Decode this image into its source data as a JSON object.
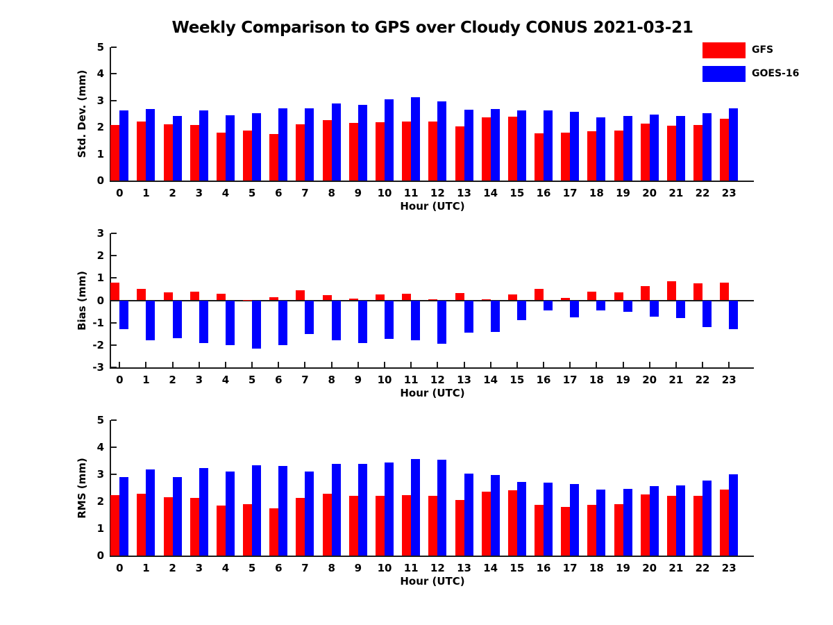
{
  "title": "Weekly Comparison to GPS over Cloudy CONUS 2021-03-21",
  "legend": {
    "position": "upper-right",
    "items": [
      {
        "label": "GFS",
        "color": "#ff0000"
      },
      {
        "label": "GOES-16",
        "color": "#0000ff"
      }
    ]
  },
  "colors": {
    "gfs": "#ff0000",
    "goes16": "#0000ff",
    "axis": "#1a1a1a",
    "background": "#ffffff"
  },
  "chart_data": [
    {
      "type": "bar",
      "name": "std-dev",
      "ylabel": "Std. Dev. (mm)",
      "xlabel": "Hour (UTC)",
      "ylim": [
        0,
        5
      ],
      "yticks": [
        0,
        1,
        2,
        3,
        4,
        5
      ],
      "grid": false,
      "categories": [
        "0",
        "1",
        "2",
        "3",
        "4",
        "5",
        "6",
        "7",
        "8",
        "9",
        "10",
        "11",
        "12",
        "13",
        "14",
        "15",
        "16",
        "17",
        "18",
        "19",
        "20",
        "21",
        "22",
        "23"
      ],
      "series": [
        {
          "name": "GFS",
          "color": "#ff0000",
          "values": [
            2.08,
            2.22,
            2.12,
            2.08,
            1.8,
            1.87,
            1.74,
            2.1,
            2.27,
            2.17,
            2.18,
            2.21,
            2.22,
            2.02,
            2.37,
            2.4,
            1.77,
            1.8,
            1.85,
            1.87,
            2.13,
            2.06,
            2.09,
            2.32
          ]
        },
        {
          "name": "GOES-16",
          "color": "#0000ff",
          "values": [
            2.62,
            2.67,
            2.43,
            2.62,
            2.45,
            2.53,
            2.7,
            2.72,
            2.88,
            2.83,
            3.04,
            3.12,
            2.98,
            2.65,
            2.67,
            2.62,
            2.64,
            2.57,
            2.38,
            2.41,
            2.47,
            2.41,
            2.52,
            2.72
          ]
        }
      ]
    },
    {
      "type": "bar",
      "name": "bias",
      "ylabel": "Bias (mm)",
      "xlabel": "Hour (UTC)",
      "ylim": [
        -3,
        3
      ],
      "yticks": [
        3,
        2,
        1,
        0,
        -1,
        -2,
        -3
      ],
      "zero_line": true,
      "grid": false,
      "categories": [
        "0",
        "1",
        "2",
        "3",
        "4",
        "5",
        "6",
        "7",
        "8",
        "9",
        "10",
        "11",
        "12",
        "13",
        "14",
        "15",
        "16",
        "17",
        "18",
        "19",
        "20",
        "21",
        "22",
        "23"
      ],
      "series": [
        {
          "name": "GFS",
          "color": "#ff0000",
          "values": [
            0.78,
            0.5,
            0.35,
            0.4,
            0.28,
            0.03,
            0.15,
            0.45,
            0.22,
            0.08,
            0.25,
            0.3,
            0.05,
            0.33,
            0.06,
            0.25,
            0.5,
            0.12,
            0.38,
            0.37,
            0.63,
            0.85,
            0.76,
            0.78
          ]
        },
        {
          "name": "GOES-16",
          "color": "#0000ff",
          "values": [
            -1.3,
            -1.78,
            -1.7,
            -1.9,
            -2.0,
            -2.15,
            -2.0,
            -1.5,
            -1.8,
            -1.9,
            -1.72,
            -1.8,
            -1.95,
            -1.45,
            -1.4,
            -0.9,
            -0.45,
            -0.75,
            -0.44,
            -0.5,
            -0.74,
            -0.78,
            -1.2,
            -1.28
          ]
        }
      ]
    },
    {
      "type": "bar",
      "name": "rms",
      "ylabel": "RMS (mm)",
      "xlabel": "Hour (UTC)",
      "ylim": [
        0,
        5
      ],
      "yticks": [
        0,
        1,
        2,
        3,
        4,
        5
      ],
      "grid": false,
      "categories": [
        "0",
        "1",
        "2",
        "3",
        "4",
        "5",
        "6",
        "7",
        "8",
        "9",
        "10",
        "11",
        "12",
        "13",
        "14",
        "15",
        "16",
        "17",
        "18",
        "19",
        "20",
        "21",
        "22",
        "23"
      ],
      "series": [
        {
          "name": "GFS",
          "color": "#ff0000",
          "values": [
            2.23,
            2.28,
            2.15,
            2.13,
            1.85,
            1.9,
            1.74,
            2.13,
            2.28,
            2.2,
            2.2,
            2.23,
            2.2,
            2.05,
            2.37,
            2.4,
            1.86,
            1.79,
            1.87,
            1.9,
            2.26,
            2.2,
            2.2,
            2.43
          ]
        },
        {
          "name": "GOES-16",
          "color": "#0000ff",
          "values": [
            2.9,
            3.18,
            2.9,
            3.23,
            3.1,
            3.33,
            3.3,
            3.1,
            3.38,
            3.38,
            3.44,
            3.57,
            3.54,
            3.02,
            2.97,
            2.73,
            2.7,
            2.65,
            2.44,
            2.46,
            2.56,
            2.58,
            2.77,
            3.0
          ]
        }
      ]
    }
  ]
}
